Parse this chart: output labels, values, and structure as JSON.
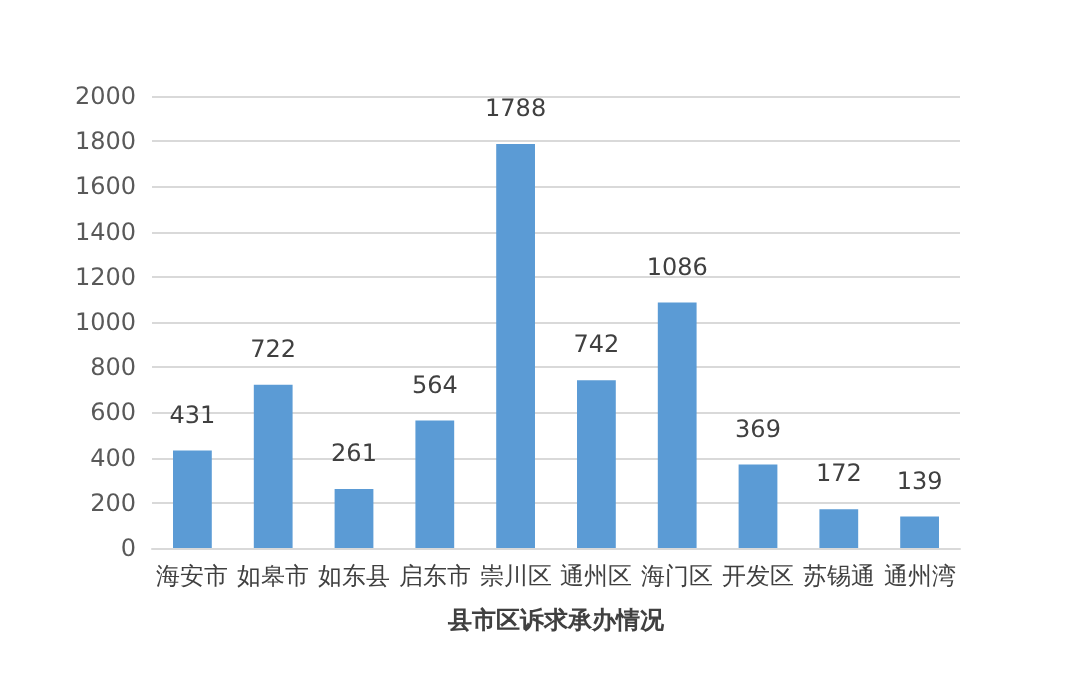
{
  "chart_data": {
    "type": "bar",
    "xlabel": "县市区诉求承办情况",
    "categories": [
      "海安市",
      "如皋市",
      "如东县",
      "启东市",
      "崇川区",
      "通州区",
      "海门区",
      "开发区",
      "苏锡通",
      "通州湾"
    ],
    "values": [
      431,
      722,
      261,
      564,
      1788,
      742,
      1086,
      369,
      172,
      139
    ],
    "color": "#5b9bd5",
    "ylim": [
      0,
      2000
    ],
    "yticks": [
      0,
      200,
      400,
      600,
      800,
      1000,
      1200,
      1400,
      1600,
      1800,
      2000
    ],
    "grid": "y",
    "data_labels": true
  }
}
